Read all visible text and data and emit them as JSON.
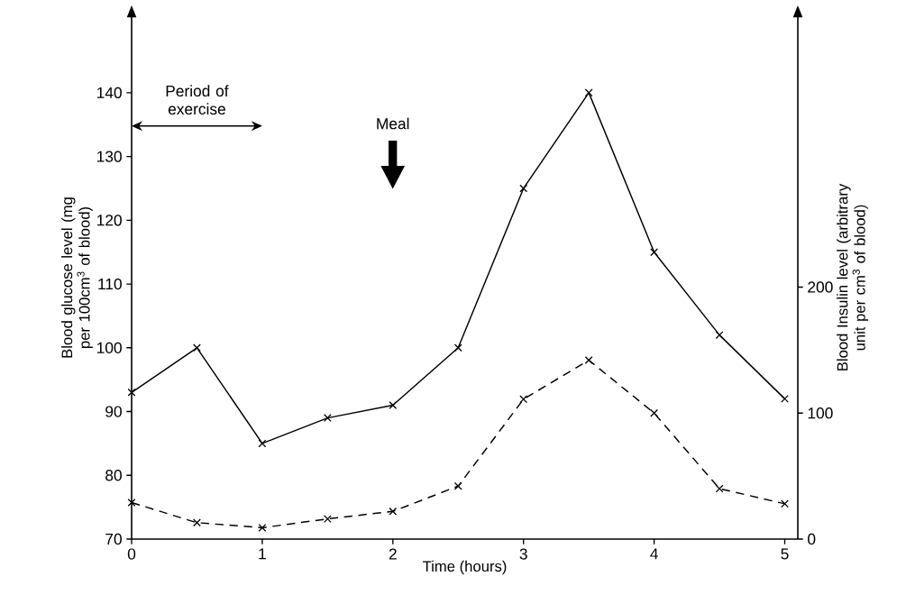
{
  "chart_data": {
    "type": "line",
    "xlabel": "Time (hours)",
    "ylabel": "Blood glucose level (mg per 100cm$^{3}$ of blood)",
    "y2label": "Blood Insulin level (arbitrary unit per cm$^{3}$ of blood)",
    "x": [
      0,
      0.5,
      1,
      1.5,
      2,
      2.5,
      3,
      3.5,
      4,
      4.5,
      5
    ],
    "series": [
      {
        "color": "#000000",
        "line_style": "solid",
        "axis": "y",
        "values": [
          93,
          100,
          85,
          89,
          91,
          100,
          125,
          140,
          115,
          102,
          92
        ]
      },
      {
        "color": "#000000",
        "line_style": "dashed",
        "axis": "y2",
        "values": [
          29,
          13,
          9,
          16,
          22,
          42,
          111,
          142,
          100,
          40,
          28
        ]
      }
    ],
    "marker": "cross",
    "xlim": [
      0,
      5.1
    ],
    "xticks": [
      0,
      1,
      2,
      3,
      4,
      5
    ],
    "ylim": [
      70,
      152
    ],
    "yticks": [
      70,
      80,
      90,
      100,
      110,
      120,
      130,
      140
    ],
    "y2lim": [
      0,
      415
    ],
    "y2ticks": [
      0,
      100,
      200
    ],
    "annotations": [
      "Period of exercise",
      "Meal"
    ]
  }
}
